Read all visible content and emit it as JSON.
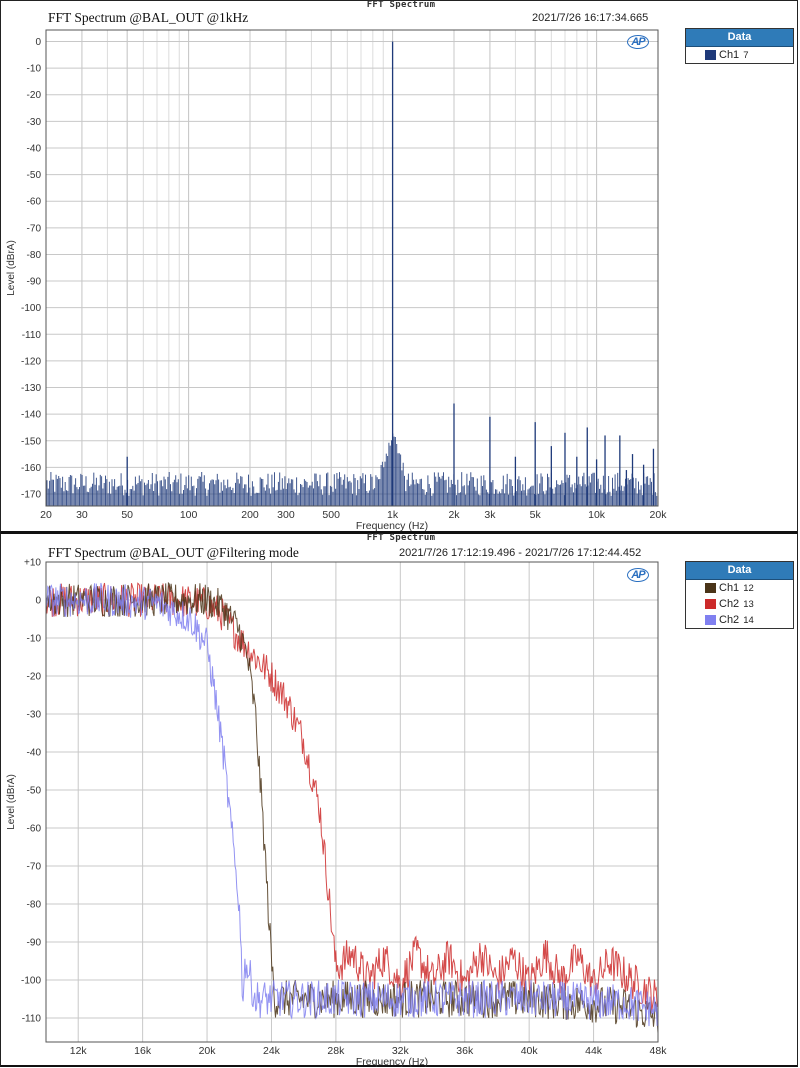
{
  "panels": [
    {
      "window_title": "FFT Spectrum",
      "title": "FFT Spectrum @BAL_OUT @1kHz",
      "timestamp": "2021/7/26 16:17:34.665",
      "logo": "AP",
      "legend": {
        "header": "Data",
        "items": [
          {
            "label": "Ch1",
            "count": "7",
            "color": "#1f3a7a"
          }
        ]
      }
    },
    {
      "window_title": "FFT Spectrum",
      "title": "FFT Spectrum @BAL_OUT @Filtering mode",
      "timestamp": "2021/7/26 17:12:19.496 - 2021/7/26 17:12:44.452",
      "logo": "AP",
      "legend": {
        "header": "Data",
        "items": [
          {
            "label": "Ch1",
            "count": "12",
            "color": "#4a3418"
          },
          {
            "label": "Ch2",
            "count": "13",
            "color": "#cc2a2a"
          },
          {
            "label": "Ch2",
            "count": "14",
            "color": "#8080f0"
          }
        ]
      }
    }
  ],
  "chart_data": [
    {
      "type": "line",
      "title": "FFT Spectrum @BAL_OUT @1kHz",
      "xlabel": "Frequency (Hz)",
      "ylabel": "Level (dBrA)",
      "xscale": "log",
      "xlim": [
        20,
        20000
      ],
      "ylim": [
        -175,
        5
      ],
      "grid": true,
      "legend_position": "right-outside",
      "x_ticks": [
        "20",
        "30",
        "50",
        "100",
        "200",
        "300",
        "500",
        "1k",
        "2k",
        "3k",
        "5k",
        "10k",
        "20k"
      ],
      "y_ticks": [
        0,
        -10,
        -20,
        -30,
        -40,
        -50,
        -60,
        -70,
        -80,
        -90,
        -100,
        -110,
        -120,
        -130,
        -140,
        -150,
        -160,
        -170
      ],
      "series": [
        {
          "name": "Ch1 7",
          "color": "#1f3a7a",
          "noise_floor_db": -168,
          "peaks": [
            {
              "freq_hz": 50,
              "level_db": -156
            },
            {
              "freq_hz": 1000,
              "level_db": 0
            },
            {
              "freq_hz": 2000,
              "level_db": -136
            },
            {
              "freq_hz": 3000,
              "level_db": -141
            },
            {
              "freq_hz": 4000,
              "level_db": -156
            },
            {
              "freq_hz": 5000,
              "level_db": -143
            },
            {
              "freq_hz": 6000,
              "level_db": -152
            },
            {
              "freq_hz": 7000,
              "level_db": -147
            },
            {
              "freq_hz": 8000,
              "level_db": -156
            },
            {
              "freq_hz": 9000,
              "level_db": -145
            },
            {
              "freq_hz": 10000,
              "level_db": -157
            },
            {
              "freq_hz": 11000,
              "level_db": -148
            },
            {
              "freq_hz": 13000,
              "level_db": -148
            },
            {
              "freq_hz": 14000,
              "level_db": -161
            },
            {
              "freq_hz": 15000,
              "level_db": -155
            },
            {
              "freq_hz": 17000,
              "level_db": -159
            },
            {
              "freq_hz": 19000,
              "level_db": -153
            }
          ]
        }
      ]
    },
    {
      "type": "line",
      "title": "FFT Spectrum @BAL_OUT @Filtering mode",
      "xlabel": "Frequency (Hz)",
      "ylabel": "Level (dBrA)",
      "xscale": "linear",
      "xlim": [
        10000,
        48000
      ],
      "ylim": [
        -115,
        10
      ],
      "grid": true,
      "legend_position": "right-outside",
      "x_ticks": [
        "12k",
        "16k",
        "20k",
        "24k",
        "28k",
        "32k",
        "36k",
        "40k",
        "44k",
        "48k"
      ],
      "y_ticks": [
        10,
        0,
        -10,
        -20,
        -30,
        -40,
        -50,
        -60,
        -70,
        -80,
        -90,
        -100,
        -110
      ],
      "series": [
        {
          "name": "Ch1 12",
          "color": "#4a3418",
          "x_khz": [
            10,
            14,
            18,
            20,
            21,
            22,
            22.5,
            23,
            23.5,
            24,
            24.2,
            30,
            40,
            46,
            48
          ],
          "y_db": [
            0,
            0,
            0,
            0,
            -2,
            -8,
            -15,
            -30,
            -60,
            -95,
            -105,
            -105,
            -105,
            -107,
            -110
          ]
        },
        {
          "name": "Ch2 13",
          "color": "#cc2a2a",
          "x_khz": [
            10,
            14,
            18,
            20,
            21,
            22,
            23,
            24,
            25,
            26,
            27,
            27.5,
            28,
            29,
            30,
            31,
            32,
            33,
            34,
            35,
            36,
            37,
            38,
            39,
            40,
            41,
            42,
            43,
            44,
            45,
            46,
            47,
            48
          ],
          "y_db": [
            0,
            0,
            0,
            -1,
            -4,
            -10,
            -15,
            -20,
            -27,
            -37,
            -55,
            -75,
            -97,
            -93,
            -100,
            -94,
            -101,
            -93,
            -100,
            -94,
            -101,
            -93,
            -100,
            -94,
            -101,
            -93,
            -100,
            -94,
            -101,
            -95,
            -99,
            -102,
            -105
          ]
        },
        {
          "name": "Ch2 14",
          "color": "#8080f0",
          "x_khz": [
            10,
            14,
            17,
            19,
            20,
            20.5,
            21,
            21.5,
            22,
            22.2,
            22.4,
            23,
            30,
            40,
            46,
            48
          ],
          "y_db": [
            0,
            0,
            -1,
            -5,
            -12,
            -25,
            -40,
            -60,
            -80,
            -103,
            -95,
            -105,
            -105,
            -105,
            -106,
            -108
          ]
        }
      ]
    }
  ]
}
